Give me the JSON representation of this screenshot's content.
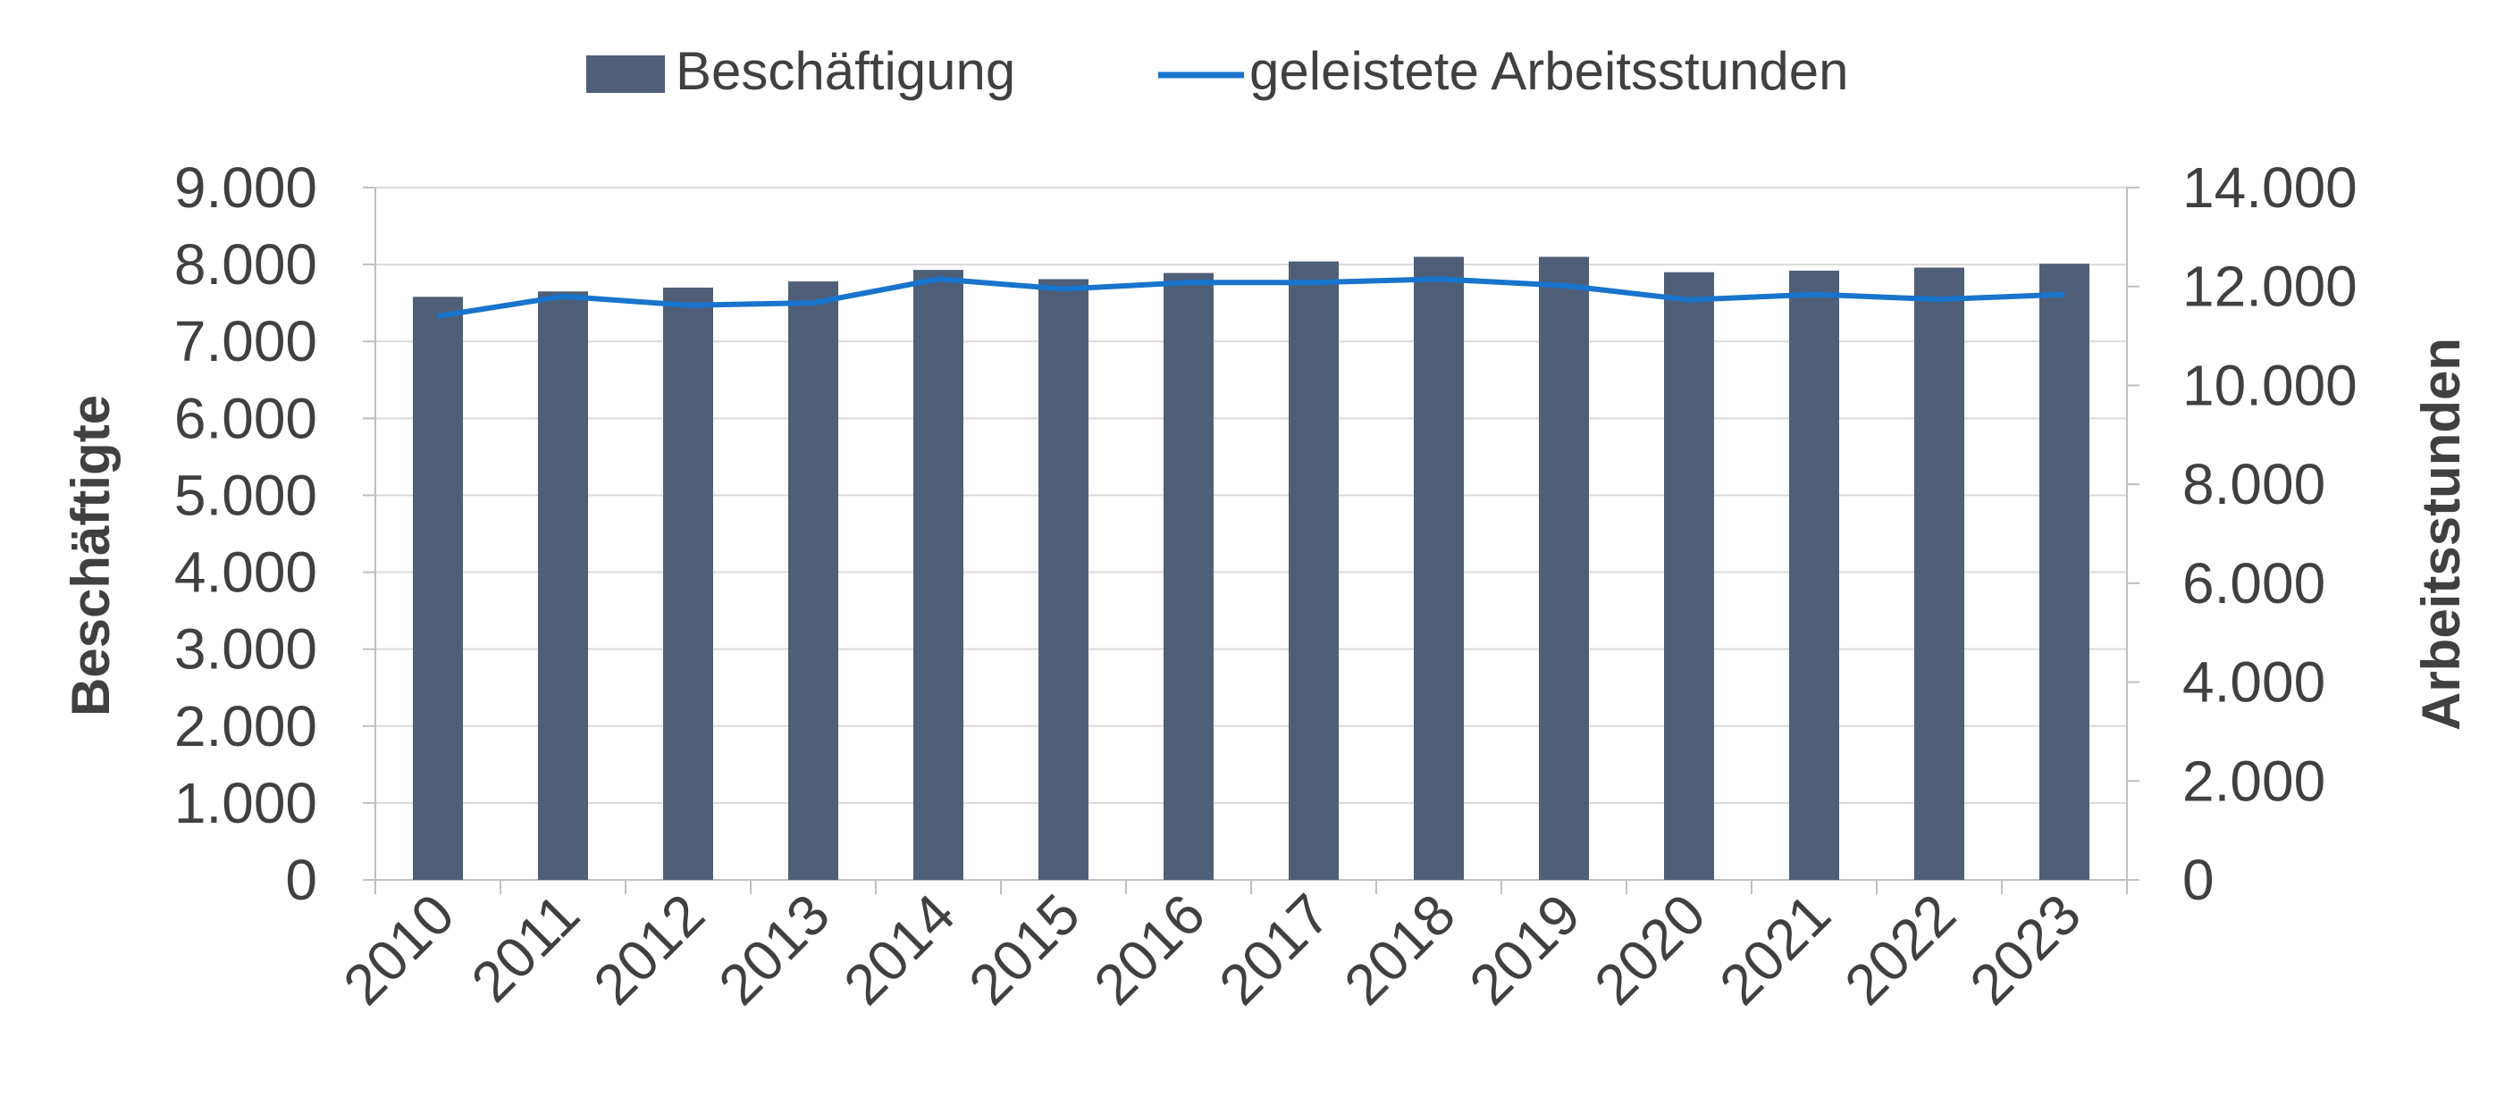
{
  "chart_data": {
    "type": "bar",
    "categories": [
      "2010",
      "2011",
      "2012",
      "2013",
      "2014",
      "2015",
      "2016",
      "2017",
      "2018",
      "2019",
      "2020",
      "2021",
      "2022",
      "2023"
    ],
    "series": [
      {
        "name": "Beschäftigung",
        "type": "bar",
        "axis": "left",
        "color": "#4f5f78",
        "values": [
          7580,
          7650,
          7700,
          7780,
          7930,
          7810,
          7890,
          8040,
          8100,
          8100,
          7900,
          7920,
          7960,
          8010
        ]
      },
      {
        "name": "geleistete Arbeitsstunden",
        "type": "line",
        "axis": "right",
        "color": "#1874cd",
        "values": [
          11400,
          11800,
          11620,
          11670,
          12150,
          11950,
          12080,
          12080,
          12150,
          12020,
          11730,
          11840,
          11740,
          11840
        ]
      }
    ],
    "ylabel": "Beschäftigte",
    "y2label": "Arbeitsstunden",
    "ylim": [
      0,
      9000
    ],
    "y2lim": [
      0,
      14000
    ],
    "yticks": [
      "0",
      "1.000",
      "2.000",
      "3.000",
      "4.000",
      "5.000",
      "6.000",
      "7.000",
      "8.000",
      "9.000"
    ],
    "y2ticks": [
      "0",
      "2.000",
      "4.000",
      "6.000",
      "8.000",
      "10.000",
      "12.000",
      "14.000"
    ],
    "grid": true,
    "legend_position": "top"
  }
}
